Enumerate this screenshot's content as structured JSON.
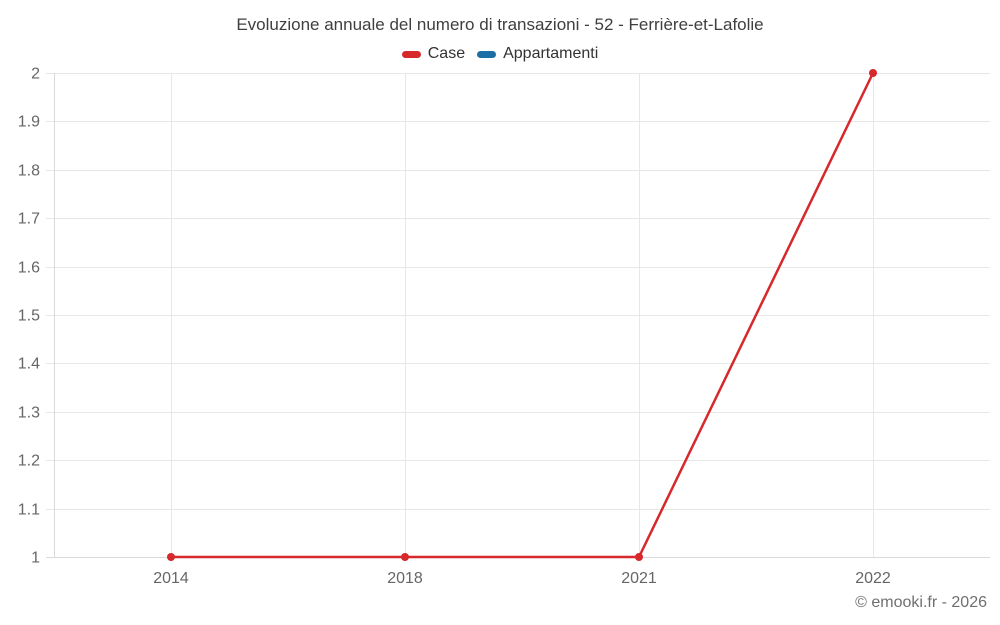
{
  "chart_data": {
    "type": "line",
    "title": "Evoluzione annuale del numero di transazioni - 52 - Ferrière-et-Lafolie",
    "categories": [
      "2014",
      "2018",
      "2021",
      "2022"
    ],
    "series": [
      {
        "name": "Case",
        "color": "#d7282c",
        "values": [
          1,
          1,
          1,
          2
        ]
      },
      {
        "name": "Appartamenti",
        "color": "#1c6ea4",
        "values": []
      }
    ],
    "ylim": [
      1,
      2
    ],
    "yticks": [
      1,
      1.1,
      1.2,
      1.3,
      1.4,
      1.5,
      1.6,
      1.7,
      1.8,
      1.9,
      2
    ],
    "xlabel": "",
    "ylabel": "",
    "grid": true,
    "legend_position": "top",
    "marker_radius": 4,
    "line_width": 2.5,
    "credits": "© emooki.fr - 2026",
    "colors": {
      "grid": "#e7e7e7",
      "axis": "#d9d9d9",
      "tick_text": "#666666",
      "title_text": "#3f3f3f",
      "credits_text": "#6f6f6f",
      "background": "#ffffff"
    }
  }
}
